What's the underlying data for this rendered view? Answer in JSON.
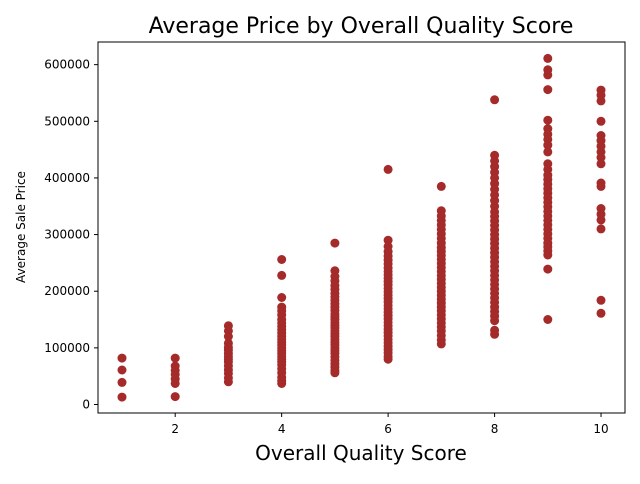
{
  "chart_data": {
    "type": "scatter",
    "title": "Average Price by Overall Quality Score",
    "xlabel": "Overall Quality Score",
    "ylabel": "Average Sale Price",
    "xlim": [
      0.55,
      10.45
    ],
    "ylim": [
      -15000,
      640000
    ],
    "xticks": [
      2,
      4,
      6,
      8,
      10
    ],
    "yticks": [
      0,
      100000,
      200000,
      300000,
      400000,
      500000,
      600000
    ],
    "grid": false,
    "legend": "none",
    "marker_color": "#a52a2a",
    "points": [
      {
        "x": 1,
        "y": [
          82000,
          61000,
          39000,
          13000
        ]
      },
      {
        "x": 2,
        "y": [
          82000,
          68000,
          60000,
          53000,
          45000,
          37000,
          14000
        ]
      },
      {
        "x": 3,
        "y": [
          139000,
          130000,
          120000,
          108000,
          101000,
          96000,
          90000,
          85000,
          80000,
          75000,
          68000,
          61000,
          55000,
          47000,
          40000
        ]
      },
      {
        "x": 4,
        "y": [
          256000,
          228000,
          189000,
          172000,
          165000,
          158000,
          150000,
          144000,
          138000,
          132000,
          126000,
          120000,
          115000,
          110000,
          105000,
          100000,
          95000,
          90000,
          85000,
          80000,
          75000,
          70000,
          63000,
          56000,
          48000,
          42000,
          37000
        ]
      },
      {
        "x": 5,
        "y": [
          285000,
          236000,
          226000,
          218000,
          210000,
          203000,
          196000,
          190000,
          184000,
          178000,
          172000,
          166000,
          160000,
          155000,
          150000,
          145000,
          140000,
          135000,
          130000,
          125000,
          120000,
          115000,
          110000,
          105000,
          100000,
          95000,
          90000,
          84000,
          78000,
          72000,
          66000,
          60000,
          56000
        ]
      },
      {
        "x": 6,
        "y": [
          415000,
          290000,
          279000,
          270000,
          262000,
          255000,
          248000,
          241000,
          235000,
          229000,
          223000,
          217000,
          211000,
          205000,
          199000,
          193000,
          187000,
          181000,
          175000,
          169000,
          163000,
          157000,
          151000,
          145000,
          139000,
          133000,
          127000,
          121000,
          115000,
          109000,
          103000,
          97000,
          91000,
          85000,
          80000
        ]
      },
      {
        "x": 7,
        "y": [
          385000,
          342000,
          333000,
          325000,
          317000,
          309000,
          301000,
          293000,
          285000,
          277000,
          270000,
          263000,
          256000,
          249000,
          242000,
          235000,
          228000,
          221000,
          214000,
          207000,
          200000,
          193000,
          186000,
          179000,
          172000,
          165000,
          158000,
          151000,
          144000,
          137000,
          130000,
          122000,
          114000,
          107000
        ]
      },
      {
        "x": 8,
        "y": [
          538000,
          440000,
          430000,
          420000,
          410000,
          400000,
          390000,
          380000,
          370000,
          360000,
          350000,
          340000,
          332000,
          324000,
          316000,
          308000,
          300000,
          292000,
          284000,
          276000,
          268000,
          260000,
          252000,
          244000,
          236000,
          228000,
          220000,
          212000,
          204000,
          196000,
          188000,
          180000,
          172000,
          164000,
          156000,
          148000,
          131000,
          124000
        ]
      },
      {
        "x": 9,
        "y": [
          611000,
          591000,
          582000,
          556000,
          502000,
          487000,
          477000,
          468000,
          458000,
          446000,
          425000,
          415000,
          405000,
          397000,
          389000,
          381000,
          373000,
          365000,
          357000,
          349000,
          341000,
          333000,
          325000,
          317000,
          309000,
          301000,
          293000,
          285000,
          278000,
          271000,
          264000,
          239000,
          150000
        ]
      },
      {
        "x": 10,
        "y": [
          555000,
          546000,
          536000,
          500000,
          475000,
          466000,
          456000,
          446000,
          436000,
          425000,
          391000,
          385000,
          346000,
          336000,
          326000,
          310000,
          184000,
          161000
        ]
      }
    ]
  }
}
